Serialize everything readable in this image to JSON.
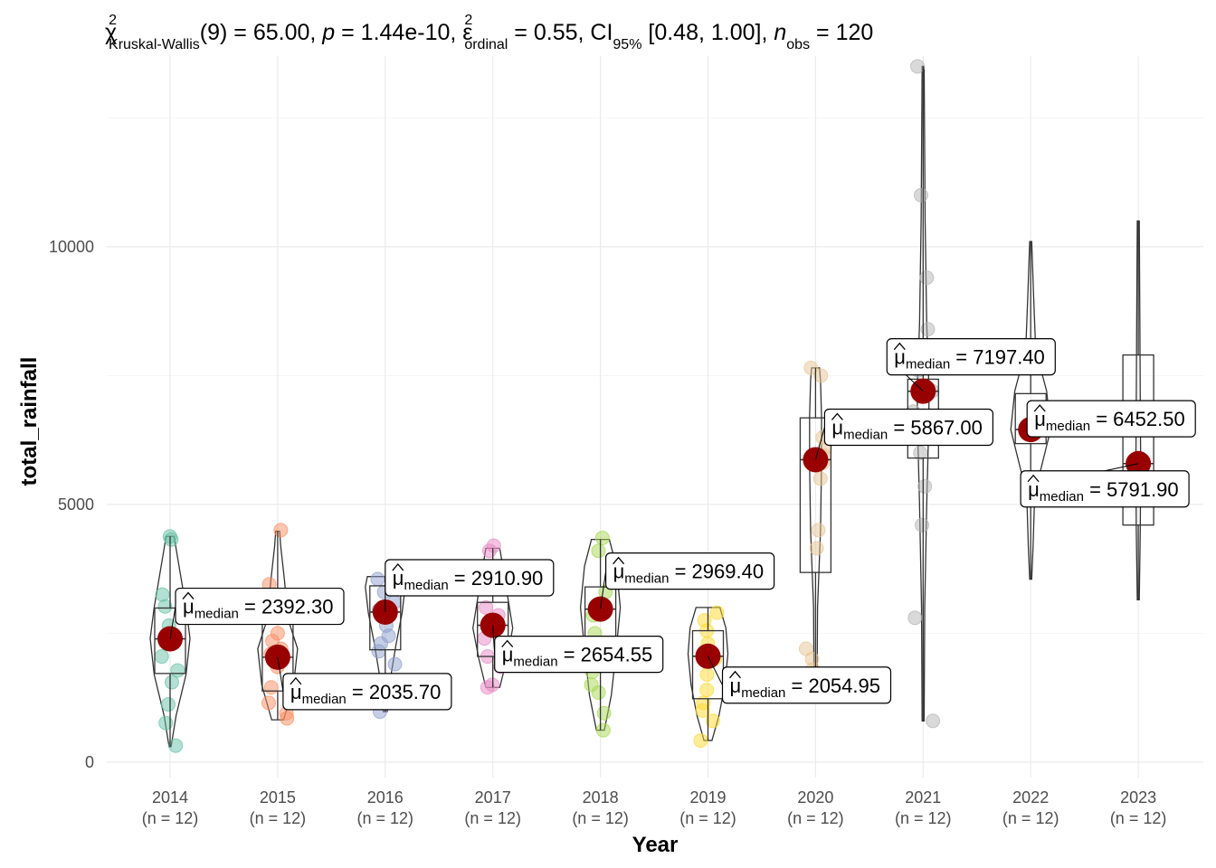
{
  "chart_data": {
    "type": "violin-box-scatter",
    "title_parts": {
      "chi": "χ",
      "chi_sup": "2",
      "chi_sub": "Kruskal-Wallis",
      "df": "(9) = 65.00, ",
      "p_label": "p",
      "p_value": " = 1.44e-10, ",
      "eps": "ε",
      "eps_sup": "2",
      "eps_sub": "ordinal",
      "eps_value": " = 0.55, CI",
      "ci_sub": "95%",
      "ci_value": " [0.48, 1.00], ",
      "n_label": "n",
      "n_sub": "obs",
      "n_value": " = 120"
    },
    "xlabel": "Year",
    "ylabel": "total_rainfall",
    "ylim": [
      -300,
      13700
    ],
    "y_ticks": [
      0,
      5000,
      10000
    ],
    "label_prefix": "μ",
    "label_sub": "median",
    "groups": [
      {
        "year": "2014",
        "n": "(n = 12)",
        "median": 2392.3,
        "median_label": "= 2392.30",
        "color": "#66c2a5",
        "q1": 1720,
        "q3": 2990,
        "wmin": 300,
        "wmax": 4380,
        "points": [
          4380,
          4320,
          3250,
          3020,
          2650,
          2380,
          2050,
          1780,
          1550,
          1120,
          760,
          320
        ],
        "violin": [
          [
            300,
            0.05
          ],
          [
            900,
            0.3
          ],
          [
            1700,
            0.8
          ],
          [
            2400,
            1.0
          ],
          [
            3000,
            0.8
          ],
          [
            3800,
            0.45
          ],
          [
            4380,
            0.2
          ]
        ]
      },
      {
        "year": "2015",
        "n": "(n = 12)",
        "median": 2035.7,
        "median_label": "= 2035.70",
        "color": "#fc8d62",
        "q1": 1380,
        "q3": 2700,
        "wmin": 820,
        "wmax": 4480,
        "points": [
          4500,
          3450,
          2500,
          2350,
          2200,
          2100,
          1980,
          1850,
          1450,
          1150,
          950,
          850
        ],
        "violin": [
          [
            820,
            0.3
          ],
          [
            1500,
            0.8
          ],
          [
            2200,
            1.0
          ],
          [
            2800,
            0.5
          ],
          [
            3500,
            0.35
          ],
          [
            4200,
            0.15
          ],
          [
            4480,
            0.1
          ]
        ]
      },
      {
        "year": "2016",
        "n": "(n = 12)",
        "median": 2910.9,
        "median_label": "= 2910.90",
        "color": "#8da0cb",
        "q1": 2180,
        "q3": 3420,
        "wmin": 980,
        "wmax": 3600,
        "points": [
          3550,
          3300,
          3100,
          2950,
          2870,
          2650,
          2450,
          2300,
          2150,
          1900,
          1300,
          980
        ],
        "violin": [
          [
            980,
            0.1
          ],
          [
            1600,
            0.25
          ],
          [
            2300,
            0.55
          ],
          [
            2900,
            0.85
          ],
          [
            3400,
            1.0
          ],
          [
            3600,
            0.9
          ]
        ]
      },
      {
        "year": "2017",
        "n": "(n = 12)",
        "median": 2654.55,
        "median_label": "= 2654.55",
        "color": "#e78ac3",
        "q1": 2050,
        "q3": 3100,
        "wmin": 1450,
        "wmax": 4150,
        "points": [
          4200,
          4100,
          3000,
          2850,
          2750,
          2600,
          2400,
          2250,
          2050,
          1850,
          1500,
          1450
        ],
        "violin": [
          [
            1450,
            0.35
          ],
          [
            2000,
            0.7
          ],
          [
            2600,
            1.0
          ],
          [
            3200,
            0.75
          ],
          [
            3800,
            0.5
          ],
          [
            4150,
            0.35
          ]
        ]
      },
      {
        "year": "2018",
        "n": "(n = 12)",
        "median": 2969.4,
        "median_label": "= 2969.40",
        "color": "#a6d854",
        "q1": 1750,
        "q3": 3400,
        "wmin": 620,
        "wmax": 4320,
        "points": [
          4350,
          4100,
          3300,
          3050,
          2850,
          2500,
          2100,
          1750,
          1500,
          1350,
          950,
          620
        ],
        "violin": [
          [
            620,
            0.2
          ],
          [
            1300,
            0.55
          ],
          [
            2200,
            0.8
          ],
          [
            3000,
            1.0
          ],
          [
            3800,
            0.8
          ],
          [
            4320,
            0.45
          ]
        ]
      },
      {
        "year": "2019",
        "n": "(n = 12)",
        "median": 2054.95,
        "median_label": "= 2054.95",
        "color": "#ffd92f",
        "q1": 1230,
        "q3": 2550,
        "wmin": 420,
        "wmax": 3000,
        "points": [
          2900,
          2750,
          2550,
          2300,
          2150,
          2000,
          1700,
          1400,
          1150,
          1000,
          800,
          420
        ],
        "violin": [
          [
            420,
            0.2
          ],
          [
            900,
            0.55
          ],
          [
            1500,
            0.85
          ],
          [
            2100,
            1.0
          ],
          [
            2600,
            0.9
          ],
          [
            3000,
            0.6
          ]
        ]
      },
      {
        "year": "2020",
        "n": "(n = 12)",
        "median": 5867.0,
        "median_label": "= 5867.00",
        "color": "#e5c494",
        "q1": 3680,
        "q3": 6680,
        "wmin": 1800,
        "wmax": 7650,
        "points": [
          7650,
          7500,
          6300,
          6100,
          5950,
          5800,
          5500,
          4500,
          4150,
          2200,
          2000,
          1800
        ],
        "violin": [
          [
            1800,
            0.08
          ],
          [
            3000,
            0.1
          ],
          [
            4500,
            0.25
          ],
          [
            5800,
            0.3
          ],
          [
            6700,
            0.3
          ],
          [
            7400,
            0.25
          ],
          [
            7650,
            0.2
          ]
        ]
      },
      {
        "year": "2021",
        "n": "(n = 12)",
        "median": 7197.4,
        "median_label": "= 7197.40",
        "color": "#b3b3b3",
        "q1": 5900,
        "q3": 7430,
        "wmin": 800,
        "wmax": 13500,
        "points": [
          13500,
          11000,
          9400,
          8400,
          7600,
          7200,
          6800,
          6000,
          5350,
          4600,
          2800,
          800
        ],
        "violin": [
          [
            800,
            0.05
          ],
          [
            3000,
            0.08
          ],
          [
            5000,
            0.18
          ],
          [
            6500,
            0.28
          ],
          [
            7200,
            0.3
          ],
          [
            8500,
            0.18
          ],
          [
            10500,
            0.1
          ],
          [
            13500,
            0.05
          ]
        ]
      },
      {
        "year": "2022",
        "n": "(n = 12)",
        "median": 6452.5,
        "median_label": "= 6452.50",
        "color": "#66c2a5",
        "q1": 6180,
        "q3": 7150,
        "wmin": 3550,
        "wmax": 10100,
        "points": [],
        "violin": [
          [
            3550,
            0.05
          ],
          [
            4200,
            0.12
          ],
          [
            5200,
            0.2
          ],
          [
            6450,
            1.0
          ],
          [
            7200,
            0.8
          ],
          [
            8000,
            0.25
          ],
          [
            9000,
            0.15
          ],
          [
            10100,
            0.05
          ]
        ]
      },
      {
        "year": "2023",
        "n": "(n = 12)",
        "median": 5791.9,
        "median_label": "= 5791.90",
        "color": "#fc8d62",
        "q1": 4600,
        "q3": 7900,
        "wmin": 3150,
        "wmax": 10500,
        "points": [],
        "violin": [
          [
            3150,
            0.05
          ],
          [
            4500,
            0.1
          ],
          [
            5800,
            0.12
          ],
          [
            7000,
            0.1
          ],
          [
            8500,
            0.08
          ],
          [
            10500,
            0.05
          ]
        ]
      }
    ]
  }
}
